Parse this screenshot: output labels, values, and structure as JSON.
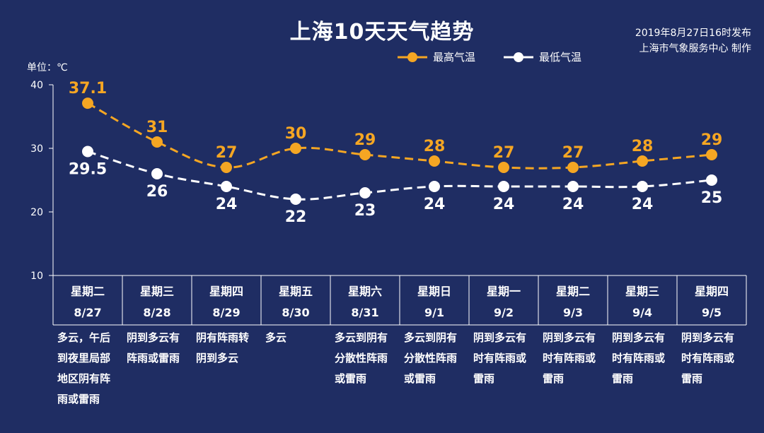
{
  "header": {
    "title": "上海10天天气趋势",
    "credit_line1": "2019年8月27日16时发布",
    "credit_line2": "上海市气象服务中心 制作"
  },
  "colors": {
    "background": "#1f2d63",
    "high": "#f5a623",
    "low": "#ffffff"
  },
  "chart_data": {
    "type": "line",
    "unit_label": "单位：℃",
    "ylim": [
      10,
      40
    ],
    "yticks": [
      10,
      20,
      30,
      40
    ],
    "legend_position": "top-right",
    "grid": false,
    "series": [
      {
        "name": "最高气温",
        "color": "#f5a623",
        "values": [
          37.1,
          31,
          27,
          30,
          29,
          28,
          27,
          27,
          28,
          29
        ],
        "labels": [
          "37.1",
          "31",
          "27",
          "30",
          "29",
          "28",
          "27",
          "27",
          "28",
          "29"
        ]
      },
      {
        "name": "最低气温",
        "color": "#ffffff",
        "values": [
          29.5,
          26,
          24,
          22,
          23,
          24,
          24,
          24,
          24,
          25
        ],
        "labels": [
          "29.5",
          "26",
          "24",
          "22",
          "23",
          "24",
          "24",
          "24",
          "24",
          "25"
        ]
      }
    ],
    "days": [
      {
        "weekday": "星期二",
        "date": "8/27",
        "desc": [
          "多云，午后",
          "到夜里局部",
          "地区阴有阵",
          "雨或雷雨"
        ]
      },
      {
        "weekday": "星期三",
        "date": "8/28",
        "desc": [
          "阴到多云有",
          "阵雨或雷雨"
        ]
      },
      {
        "weekday": "星期四",
        "date": "8/29",
        "desc": [
          "阴有阵雨转",
          "阴到多云"
        ]
      },
      {
        "weekday": "星期五",
        "date": "8/30",
        "desc": [
          "多云"
        ]
      },
      {
        "weekday": "星期六",
        "date": "8/31",
        "desc": [
          "多云到阴有",
          "分散性阵雨",
          "或雷雨"
        ]
      },
      {
        "weekday": "星期日",
        "date": "9/1",
        "desc": [
          "多云到阴有",
          "分散性阵雨",
          "或雷雨"
        ]
      },
      {
        "weekday": "星期一",
        "date": "9/2",
        "desc": [
          "阴到多云有",
          "时有阵雨或",
          "雷雨"
        ]
      },
      {
        "weekday": "星期二",
        "date": "9/3",
        "desc": [
          "阴到多云有",
          "时有阵雨或",
          "雷雨"
        ]
      },
      {
        "weekday": "星期三",
        "date": "9/4",
        "desc": [
          "阴到多云有",
          "时有阵雨或",
          "雷雨"
        ]
      },
      {
        "weekday": "星期四",
        "date": "9/5",
        "desc": [
          "阴到多云有",
          "时有阵雨或",
          "雷雨"
        ]
      }
    ]
  }
}
